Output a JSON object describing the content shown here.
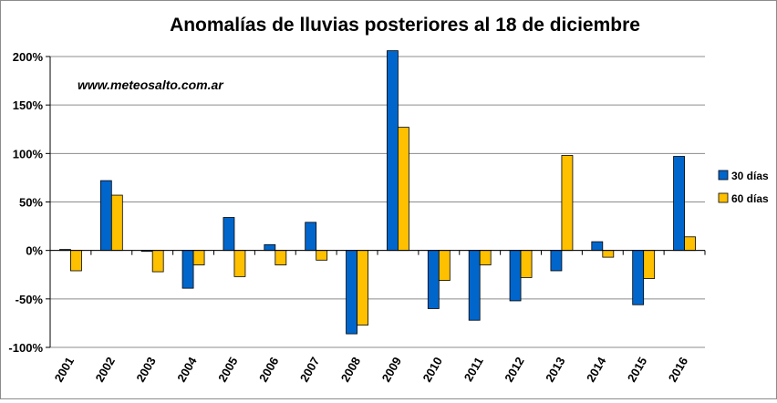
{
  "chart_data": {
    "type": "bar",
    "title": "Anomalías de lluvias posteriores al 18 de diciembre",
    "watermark": "www.meteosalto.com.ar",
    "xlabel": "",
    "ylabel": "",
    "ylim": [
      -100,
      200
    ],
    "yticks": [
      "200%",
      "150%",
      "100%",
      "50%",
      "0%",
      "-50%",
      "-100%"
    ],
    "grid": true,
    "legend_position": "right",
    "categories": [
      "2001",
      "2002",
      "2003",
      "2004",
      "2005",
      "2006",
      "2007",
      "2008",
      "2009",
      "2010",
      "2011",
      "2012",
      "2013",
      "2014",
      "2015",
      "2016"
    ],
    "series": [
      {
        "name": "30 días",
        "color": "#0066CC",
        "values": [
          1,
          72,
          -1,
          -39,
          34,
          6,
          29,
          -86,
          206,
          -60,
          -72,
          -52,
          -21,
          9,
          -56,
          97
        ]
      },
      {
        "name": "60 días",
        "color": "#FFC000",
        "values": [
          -21,
          57,
          -22,
          -15,
          -27,
          -15,
          -10,
          -77,
          127,
          -31,
          -15,
          -28,
          98,
          -7,
          -29,
          14
        ]
      }
    ]
  }
}
